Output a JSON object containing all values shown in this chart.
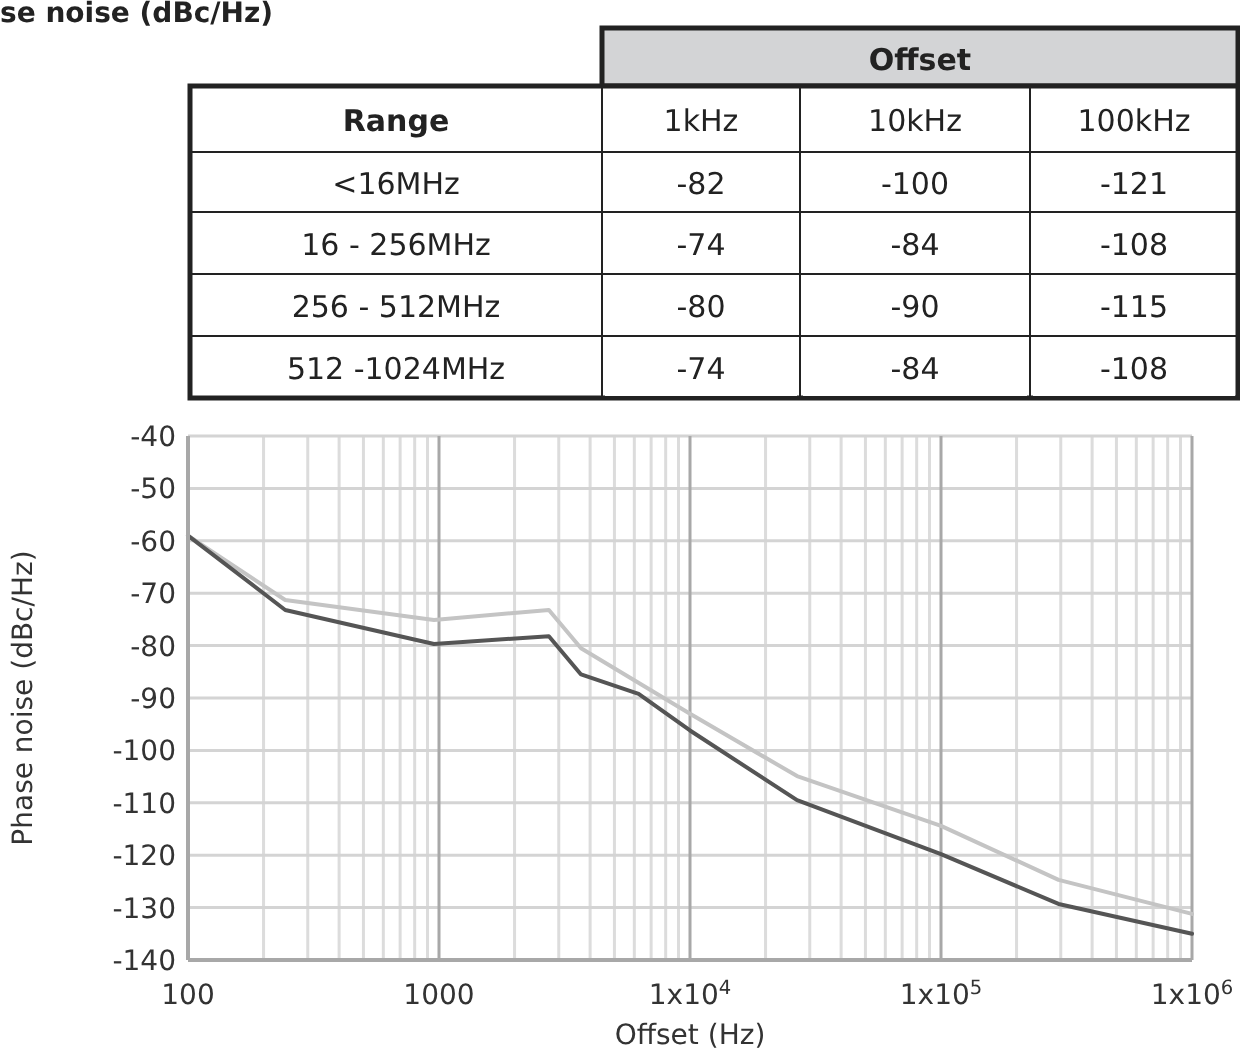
{
  "chart_data": [
    {
      "type": "heatmap",
      "data_labels": true,
      "title": "se noise (dBc/Hz)",
      "xlabel": "Offset",
      "ylabel": "Range",
      "categories": [
        "1kHz",
        "10kHz",
        "100kHz"
      ],
      "y_categories": [
        "<16MHz",
        "16 - 256MHz",
        "256 - 512MHz",
        "512 -1024MHz"
      ],
      "cells": [
        [
          -82,
          -100,
          -121
        ],
        [
          -74,
          -84,
          -108
        ],
        [
          -80,
          -90,
          -115
        ],
        [
          -74,
          -84,
          -108
        ]
      ]
    },
    {
      "type": "line",
      "xlabel": "Offset (Hz)",
      "ylabel": "Phase noise (dBc/Hz)",
      "log": "x",
      "grid": true,
      "marker": "none",
      "line_style": "solid",
      "xlim": [
        100,
        1000000
      ],
      "xticks": [
        100,
        1000,
        {
          "value": 10000,
          "label": "1x10$^{4}$"
        },
        {
          "value": 100000,
          "label": "1x10$^{5}$"
        },
        {
          "value": 1000000,
          "label": "1x10$^{6}$"
        }
      ],
      "ylim": [
        -140,
        -40
      ],
      "yticks": [
        -140,
        -130,
        -120,
        -110,
        -100,
        -90,
        -80,
        -70,
        -60,
        -50,
        -40
      ],
      "series": [
        {
          "color": "#c4c4c4",
          "x": [
            100,
            244,
            955,
            2740,
            3680,
            10000,
            26700,
            100000,
            294000,
            1000000
          ],
          "values": [
            -59,
            -71.3,
            -75.1,
            -73.2,
            -80.5,
            -93,
            -104.9,
            -114.4,
            -124.7,
            -131.2
          ]
        },
        {
          "color": "#555555",
          "x": [
            100,
            244,
            955,
            2740,
            3680,
            6240,
            10000,
            26700,
            100000,
            294000,
            1000000
          ],
          "values": [
            -59,
            -73.2,
            -79.7,
            -78.2,
            -85.5,
            -89.2,
            -96.2,
            -109.5,
            -119.8,
            -129.3,
            -135
          ]
        }
      ]
    }
  ]
}
